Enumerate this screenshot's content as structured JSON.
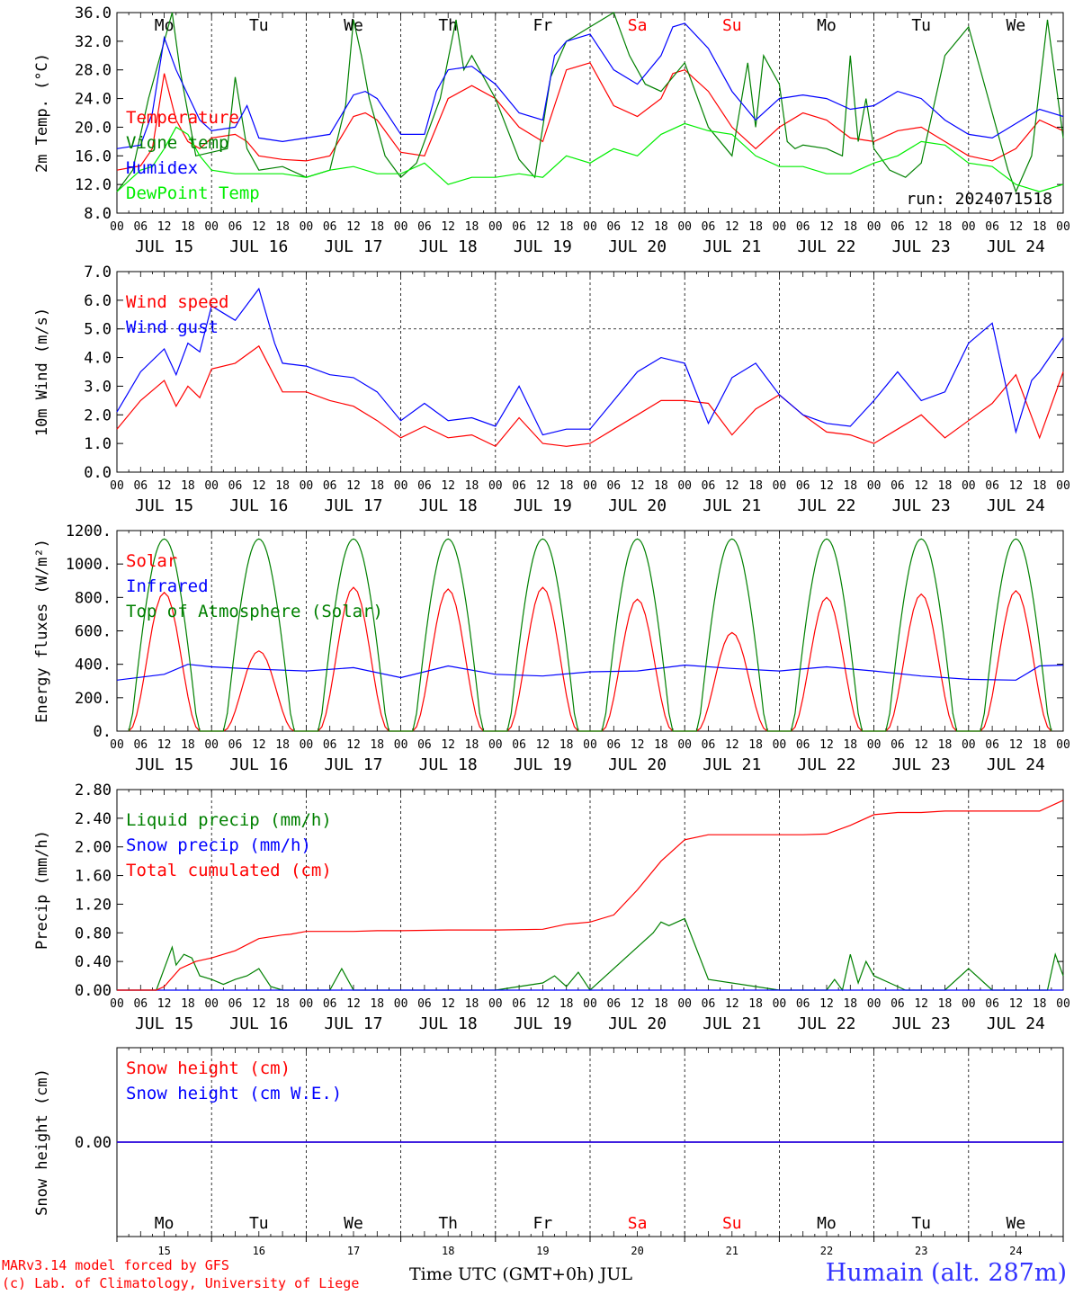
{
  "footer": {
    "credit_line1": "MARv3.14 model forced by GFS",
    "credit_line2": "(c) Lab. of Climatology, University of Liege",
    "time_label": "Time UTC (GMT+0h) JUL",
    "station": "Humain (alt. 287m)"
  },
  "days": {
    "weekday_labels": [
      "Mo",
      "Tu",
      "We",
      "Th",
      "Fr",
      "Sa",
      "Su",
      "Mo",
      "Tu",
      "We"
    ],
    "weekend_color": "#ff0000",
    "weekday_color": "#000000",
    "weekend_index": [
      5,
      6
    ],
    "date_labels": [
      "JUL 15",
      "JUL 16",
      "JUL 17",
      "JUL 18",
      "JUL 19",
      "JUL 20",
      "JUL 21",
      "JUL 22",
      "JUL 23",
      "JUL 24"
    ],
    "day_numbers": [
      "15",
      "16",
      "17",
      "18",
      "19",
      "20",
      "21",
      "22",
      "23",
      "24"
    ],
    "hour_labels": [
      "00",
      "06",
      "12",
      "18"
    ]
  },
  "chart_data": [
    {
      "type": "line",
      "ylabel": "2m Temp. (°C)",
      "ylim": [
        8,
        36
      ],
      "yticks": [
        "8.0",
        "12.0",
        "16.0",
        "20.0",
        "24.0",
        "28.0",
        "32.0",
        "36.0"
      ],
      "run_label": "run: 2024071518",
      "x_unit": "hours since JUL 15 00 UTC",
      "series": [
        {
          "name": "Temperature",
          "color": "#ff0000",
          "x": [
            0,
            6,
            9,
            12,
            15,
            18,
            21,
            24,
            30,
            33,
            36,
            42,
            48,
            54,
            60,
            63,
            66,
            72,
            78,
            81,
            84,
            90,
            96,
            102,
            108,
            111,
            114,
            120,
            126,
            132,
            138,
            141,
            144,
            150,
            156,
            162,
            168,
            174,
            180,
            186,
            192,
            198,
            204,
            210,
            216,
            222,
            228,
            234,
            240
          ],
          "y": [
            14,
            14.6,
            17,
            27.5,
            21,
            18,
            17,
            18.5,
            19,
            18,
            16,
            15.5,
            15.3,
            16,
            21.5,
            22,
            21,
            16.5,
            16,
            20,
            24,
            25.8,
            24,
            20,
            18,
            23,
            28,
            29,
            23,
            21.5,
            24,
            27.5,
            28,
            25,
            20,
            17,
            20,
            22,
            21,
            18.5,
            18,
            19.5,
            20,
            18,
            16,
            15.3,
            17,
            21,
            19.5
          ]
        },
        {
          "name": "Vigne temp",
          "color": "#008000",
          "x": [
            0,
            4,
            8,
            12,
            14,
            16,
            18,
            20,
            24,
            28,
            30,
            33,
            36,
            42,
            48,
            54,
            58,
            60,
            62,
            64,
            68,
            72,
            76,
            82,
            86,
            88,
            90,
            96,
            102,
            106,
            110,
            114,
            120,
            126,
            130,
            134,
            138,
            144,
            150,
            156,
            160,
            162,
            164,
            166,
            168,
            170,
            172,
            174,
            180,
            184,
            186,
            188,
            190,
            192,
            196,
            200,
            204,
            210,
            216,
            222,
            226,
            228,
            232,
            236,
            240
          ],
          "y": [
            11,
            14,
            24,
            32,
            36,
            28,
            22,
            16,
            16.5,
            17,
            27,
            17,
            14,
            14.5,
            13,
            14,
            23,
            35,
            30,
            24,
            16,
            13,
            15,
            24,
            35,
            28,
            30,
            24,
            15.5,
            13,
            27,
            32,
            34,
            36,
            30,
            26,
            25,
            29,
            20,
            16,
            29,
            20,
            30,
            28,
            26,
            18,
            17,
            17.5,
            17,
            16,
            30,
            18,
            24,
            17,
            14,
            13,
            15,
            30,
            34,
            22,
            14,
            11,
            16,
            35,
            18.5
          ]
        },
        {
          "name": "Humidex",
          "color": "#0000ff",
          "x": [
            0,
            6,
            9,
            12,
            15,
            18,
            21,
            24,
            30,
            33,
            36,
            42,
            48,
            54,
            60,
            63,
            66,
            72,
            78,
            81,
            84,
            90,
            96,
            102,
            108,
            111,
            114,
            120,
            126,
            132,
            138,
            141,
            144,
            150,
            156,
            162,
            168,
            174,
            180,
            186,
            192,
            198,
            204,
            210,
            216,
            222,
            228,
            234,
            240
          ],
          "y": [
            17,
            17.5,
            22,
            32.5,
            28,
            24.5,
            21,
            19.5,
            20,
            23,
            18.5,
            18,
            18.5,
            19,
            24.5,
            25,
            24,
            19,
            19,
            25,
            28,
            28.5,
            26,
            22,
            21,
            30,
            32,
            33,
            28,
            26,
            30,
            34,
            34.5,
            31,
            25,
            21,
            24,
            24.5,
            24,
            22.5,
            23,
            25,
            24,
            21,
            19,
            18.5,
            20.5,
            22.5,
            21.5
          ]
        },
        {
          "name": "DewPoint Temp",
          "color": "#00ee00",
          "x": [
            0,
            6,
            9,
            12,
            15,
            18,
            21,
            24,
            30,
            36,
            42,
            48,
            54,
            60,
            66,
            72,
            78,
            84,
            90,
            96,
            102,
            108,
            114,
            120,
            126,
            132,
            138,
            144,
            150,
            156,
            162,
            168,
            174,
            180,
            186,
            192,
            198,
            204,
            210,
            216,
            222,
            228,
            234,
            240
          ],
          "y": [
            11,
            14,
            14.5,
            17,
            20,
            19,
            16,
            14,
            13.5,
            13.5,
            13.5,
            13,
            14,
            14.5,
            13.5,
            13.5,
            15,
            12,
            13,
            13,
            13.5,
            13,
            16,
            15,
            17,
            16,
            19,
            20.5,
            19.5,
            19,
            16,
            14.5,
            14.5,
            13.5,
            13.5,
            15,
            16,
            18,
            17.5,
            15,
            14.5,
            12,
            11,
            12
          ]
        }
      ]
    },
    {
      "type": "line",
      "ylabel": "10m Wind (m/s)",
      "ylim": [
        0,
        7
      ],
      "yticks": [
        "0.0",
        "1.0",
        "2.0",
        "3.0",
        "4.0",
        "5.0",
        "6.0",
        "7.0"
      ],
      "reference_line": 5,
      "x_unit": "hours since JUL 15 00 UTC",
      "series": [
        {
          "name": "Wind speed",
          "color": "#ff0000",
          "x": [
            0,
            6,
            12,
            15,
            18,
            21,
            24,
            30,
            36,
            42,
            48,
            54,
            60,
            66,
            72,
            78,
            84,
            90,
            96,
            102,
            108,
            114,
            120,
            126,
            132,
            138,
            144,
            150,
            156,
            162,
            168,
            174,
            180,
            186,
            192,
            198,
            204,
            210,
            216,
            222,
            228,
            234,
            240
          ],
          "y": [
            1.5,
            2.5,
            3.2,
            2.3,
            3.0,
            2.6,
            3.6,
            3.8,
            4.4,
            2.8,
            2.8,
            2.5,
            2.3,
            1.8,
            1.2,
            1.6,
            1.2,
            1.3,
            0.9,
            1.9,
            1.0,
            0.9,
            1.0,
            1.5,
            2.0,
            2.5,
            2.5,
            2.4,
            1.3,
            2.2,
            2.7,
            2.0,
            1.4,
            1.3,
            1.0,
            1.5,
            2.0,
            1.2,
            1.8,
            2.4,
            3.4,
            1.2,
            3.5
          ]
        },
        {
          "name": "Wind gust",
          "color": "#0000ff",
          "x": [
            0,
            6,
            12,
            15,
            18,
            21,
            24,
            30,
            36,
            40,
            42,
            48,
            54,
            60,
            66,
            72,
            78,
            84,
            90,
            96,
            102,
            108,
            114,
            120,
            126,
            132,
            138,
            144,
            150,
            156,
            162,
            168,
            174,
            180,
            186,
            192,
            198,
            204,
            210,
            216,
            222,
            228,
            232,
            234,
            240
          ],
          "y": [
            2.1,
            3.5,
            4.3,
            3.4,
            4.5,
            4.2,
            5.8,
            5.3,
            6.4,
            4.5,
            3.8,
            3.7,
            3.4,
            3.3,
            2.8,
            1.8,
            2.4,
            1.8,
            1.9,
            1.6,
            3.0,
            1.3,
            1.5,
            1.5,
            2.5,
            3.5,
            4.0,
            3.8,
            1.7,
            3.3,
            3.8,
            2.7,
            2.0,
            1.7,
            1.6,
            2.5,
            3.5,
            2.5,
            2.8,
            4.5,
            5.2,
            1.4,
            3.2,
            3.5,
            4.7
          ]
        }
      ]
    },
    {
      "type": "line",
      "ylabel": "Energy fluxes (W/m²)",
      "ylim": [
        0,
        1200
      ],
      "yticks": [
        "0.",
        "200.",
        "400.",
        "600.",
        "800.",
        "1000.",
        "1200."
      ],
      "x_unit": "hours since JUL 15 00 UTC",
      "series": [
        {
          "name": "Solar",
          "color": "#ff0000",
          "peaks_hours": [
            12,
            36,
            60,
            84,
            108,
            132,
            156,
            180,
            204,
            228
          ],
          "peaks_w": [
            830,
            480,
            860,
            850,
            860,
            790,
            590,
            800,
            820,
            840
          ]
        },
        {
          "name": "Infrared",
          "color": "#0000ff",
          "x": [
            0,
            12,
            18,
            24,
            36,
            48,
            60,
            72,
            84,
            96,
            108,
            120,
            132,
            144,
            156,
            168,
            180,
            192,
            204,
            216,
            228,
            234,
            240
          ],
          "y": [
            305,
            340,
            400,
            385,
            370,
            360,
            380,
            320,
            390,
            340,
            330,
            355,
            360,
            395,
            375,
            360,
            385,
            360,
            330,
            310,
            305,
            390,
            395
          ]
        },
        {
          "name": "Top of Atmosphere (Solar)",
          "color": "#008000",
          "peak_w": 1150
        }
      ]
    },
    {
      "type": "line",
      "ylabel": "Precip (mm/h)",
      "ylim": [
        0,
        2.8
      ],
      "yticks": [
        "0.00",
        "0.40",
        "0.80",
        "1.20",
        "1.60",
        "2.00",
        "2.40",
        "2.80"
      ],
      "x_unit": "hours since JUL 15 00 UTC",
      "series": [
        {
          "name": "Liquid precip (mm/h)",
          "color": "#008000",
          "x": [
            0,
            10,
            12,
            14,
            15,
            17,
            19,
            21,
            24,
            27,
            30,
            33,
            36,
            39,
            42,
            48,
            54,
            57,
            60,
            66,
            72,
            78,
            80,
            82,
            84,
            96,
            108,
            111,
            114,
            117,
            120,
            126,
            132,
            136,
            138,
            140,
            144,
            150,
            168,
            180,
            182,
            184,
            186,
            188,
            190,
            192,
            196,
            200,
            210,
            216,
            222,
            228,
            234,
            236,
            238,
            240
          ],
          "y": [
            0,
            0,
            0.3,
            0.6,
            0.35,
            0.5,
            0.45,
            0.2,
            0.15,
            0.08,
            0.15,
            0.2,
            0.3,
            0.05,
            0,
            0,
            0,
            0.3,
            0,
            0,
            0,
            0,
            0,
            0,
            0,
            0,
            0.1,
            0.2,
            0.05,
            0.25,
            0,
            0.3,
            0.6,
            0.8,
            0.95,
            0.9,
            1.0,
            0.15,
            0,
            0,
            0.15,
            0,
            0.5,
            0.1,
            0.4,
            0.2,
            0.1,
            0,
            0,
            0.3,
            0,
            0,
            0,
            0,
            0.5,
            0.2
          ]
        },
        {
          "name": "Snow precip (mm/h)",
          "color": "#0000ff",
          "x": [
            0,
            240
          ],
          "y": [
            0,
            0
          ]
        },
        {
          "name": "Total cumulated (cm)",
          "color": "#ff0000",
          "x": [
            0,
            10,
            12,
            16,
            20,
            24,
            30,
            36,
            42,
            44,
            48,
            56,
            60,
            66,
            72,
            84,
            96,
            108,
            114,
            120,
            126,
            132,
            138,
            144,
            150,
            156,
            162,
            168,
            174,
            180,
            186,
            192,
            198,
            204,
            210,
            216,
            222,
            228,
            234,
            240
          ],
          "y": [
            0,
            0,
            0.05,
            0.3,
            0.4,
            0.45,
            0.55,
            0.72,
            0.77,
            0.78,
            0.82,
            0.82,
            0.82,
            0.83,
            0.83,
            0.84,
            0.84,
            0.85,
            0.92,
            0.95,
            1.05,
            1.4,
            1.8,
            2.1,
            2.17,
            2.17,
            2.17,
            2.17,
            2.17,
            2.18,
            2.3,
            2.45,
            2.48,
            2.48,
            2.5,
            2.5,
            2.5,
            2.5,
            2.5,
            2.65
          ]
        }
      ]
    },
    {
      "type": "line",
      "ylabel": "Snow height (cm)",
      "ylim": [
        -1,
        1
      ],
      "yticks": [
        "0.00"
      ],
      "x_unit": "hours since JUL 15 00 UTC",
      "series": [
        {
          "name": "Snow height (cm)",
          "color": "#ff0000",
          "x": [
            0,
            240
          ],
          "y": [
            0,
            0
          ]
        },
        {
          "name": "Snow height (cm W.E.)",
          "color": "#0000ff",
          "x": [
            0,
            240
          ],
          "y": [
            0,
            0
          ]
        }
      ]
    }
  ]
}
